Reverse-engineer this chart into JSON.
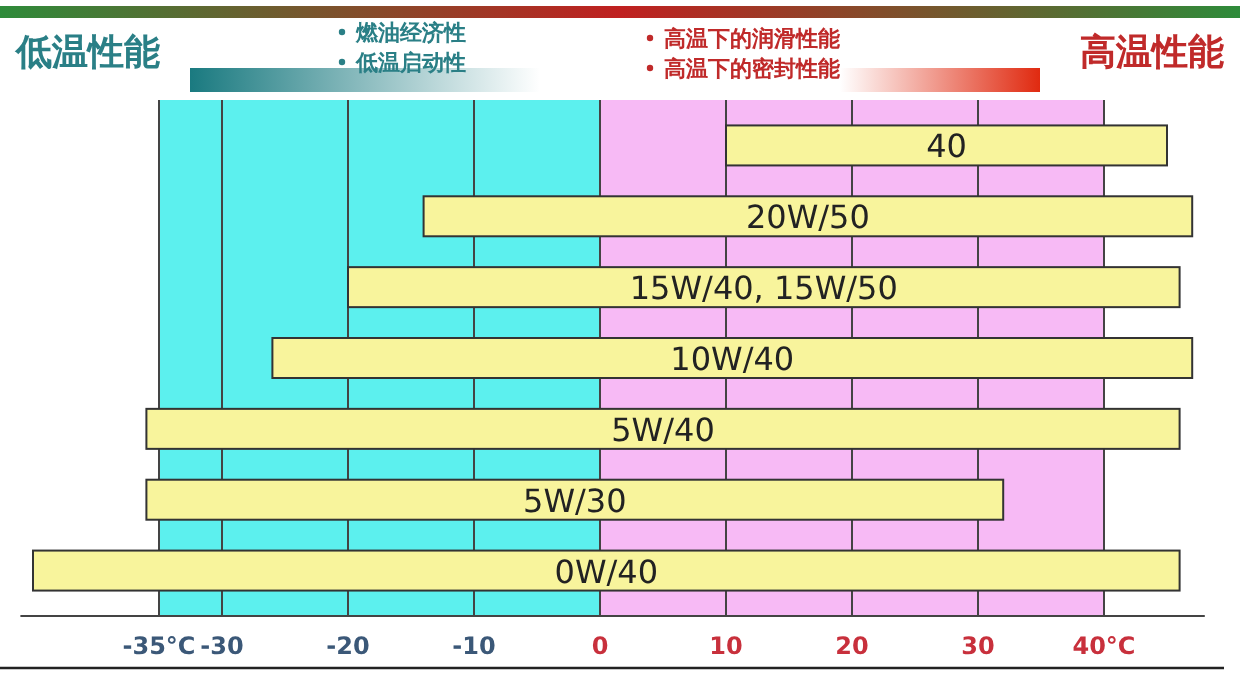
{
  "chart_data": {
    "type": "bar",
    "orientation": "horizontal",
    "categories": [
      "40",
      "20W/50",
      "15W/40, 15W/50",
      "10W/40",
      "5W/40",
      "5W/30",
      "0W/40"
    ],
    "base": [
      10,
      -14,
      -20,
      -26,
      -36,
      -36,
      -45
    ],
    "values": [
      35,
      61,
      66,
      73,
      82,
      68,
      91
    ],
    "color": "#f8f49c",
    "xlim": [
      -46,
      48
    ],
    "xticks": [
      {
        "value": -35,
        "label": "-35°C"
      },
      -30,
      -20,
      -10,
      0,
      10,
      20,
      30,
      {
        "value": 40,
        "label": "40°C"
      }
    ],
    "grid": "x",
    "bands": [
      {
        "axis": "x",
        "from": -35,
        "to": 0,
        "color": "#5cf0ee"
      },
      {
        "axis": "x",
        "from": 0,
        "to": 40,
        "color": "#f7baf5"
      }
    ],
    "annotations": [
      "低温性能",
      "燃油经济性",
      "低温启动性",
      "高温下的润滑性能",
      "高温下的密封性能",
      "高温性能"
    ]
  }
}
